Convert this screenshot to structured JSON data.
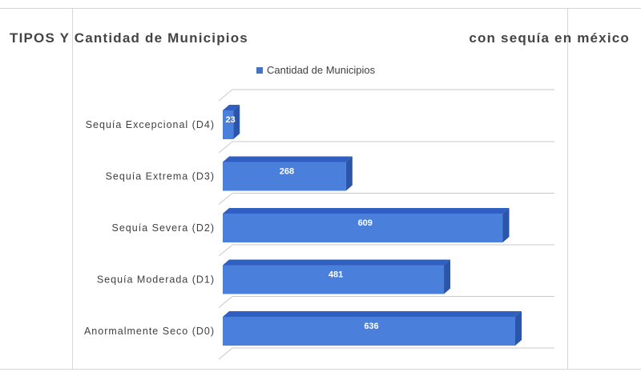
{
  "header": {
    "title_left": "TIPOS Y Cantidad de Municipios",
    "title_right": "con sequía en méxico"
  },
  "chart_data": {
    "type": "bar",
    "orientation": "horizontal",
    "title": "TIPOS Y Cantidad de Municipios con sequía en méxico",
    "categories": [
      "Sequía Excepcional (D4)",
      "Sequía Extrema (D3)",
      "Sequía Severa (D2)",
      "Sequía Moderada (D1)",
      "Anormalmente Seco (D0)"
    ],
    "series": [
      {
        "name": "Cantidad de Municipios",
        "values": [
          23,
          268,
          609,
          481,
          636
        ]
      }
    ],
    "xlim": [
      0,
      700
    ],
    "legend_position": "top",
    "colors": {
      "bar_front": "#4A7FDB",
      "bar_top": "#2F5FC0",
      "bar_side": "#2A55A8"
    }
  }
}
